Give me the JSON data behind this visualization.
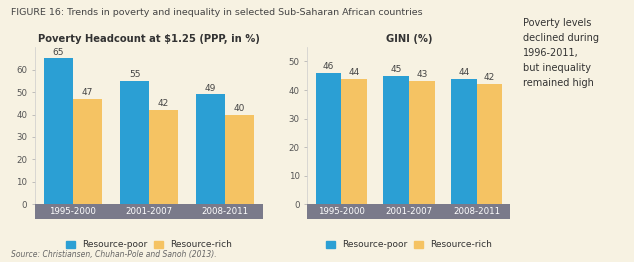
{
  "figure_title": "FIGURE 16: Trends in poverty and inequality in selected Sub-Saharan African countries",
  "source_text": "Source: Christiansen, Chuhan-Pole and Sanoh (2013).",
  "sidebar_text": "Poverty levels\ndeclined during\n1996-2011,\nbut inequality\nremained high",
  "background_color": "#f7f2e2",
  "chart1": {
    "title": "Poverty Headcount at $1.25 (PPP, in %)",
    "categories": [
      "1995-2000",
      "2001-2007",
      "2008-2011"
    ],
    "resource_poor": [
      65,
      55,
      49
    ],
    "resource_rich": [
      47,
      42,
      40
    ],
    "ylim": [
      0,
      70
    ],
    "yticks": [
      0,
      10,
      20,
      30,
      40,
      50,
      60
    ]
  },
  "chart2": {
    "title": "GINI (%)",
    "categories": [
      "1995-2000",
      "2001-2007",
      "2008-2011"
    ],
    "resource_poor": [
      46,
      45,
      44
    ],
    "resource_rich": [
      44,
      43,
      42
    ],
    "ylim": [
      0,
      55
    ],
    "yticks": [
      0,
      10,
      20,
      30,
      40,
      50
    ]
  },
  "color_poor": "#2b9fd4",
  "color_rich": "#f5c363",
  "bar_width": 0.38,
  "xband_color": "#7a7a8a",
  "value_fontsize": 6.5,
  "title_fontsize": 7.2,
  "tick_fontsize": 6.2,
  "legend_fontsize": 6.5,
  "figure_title_fontsize": 6.8,
  "source_fontsize": 5.5,
  "sidebar_fontsize": 7.0
}
